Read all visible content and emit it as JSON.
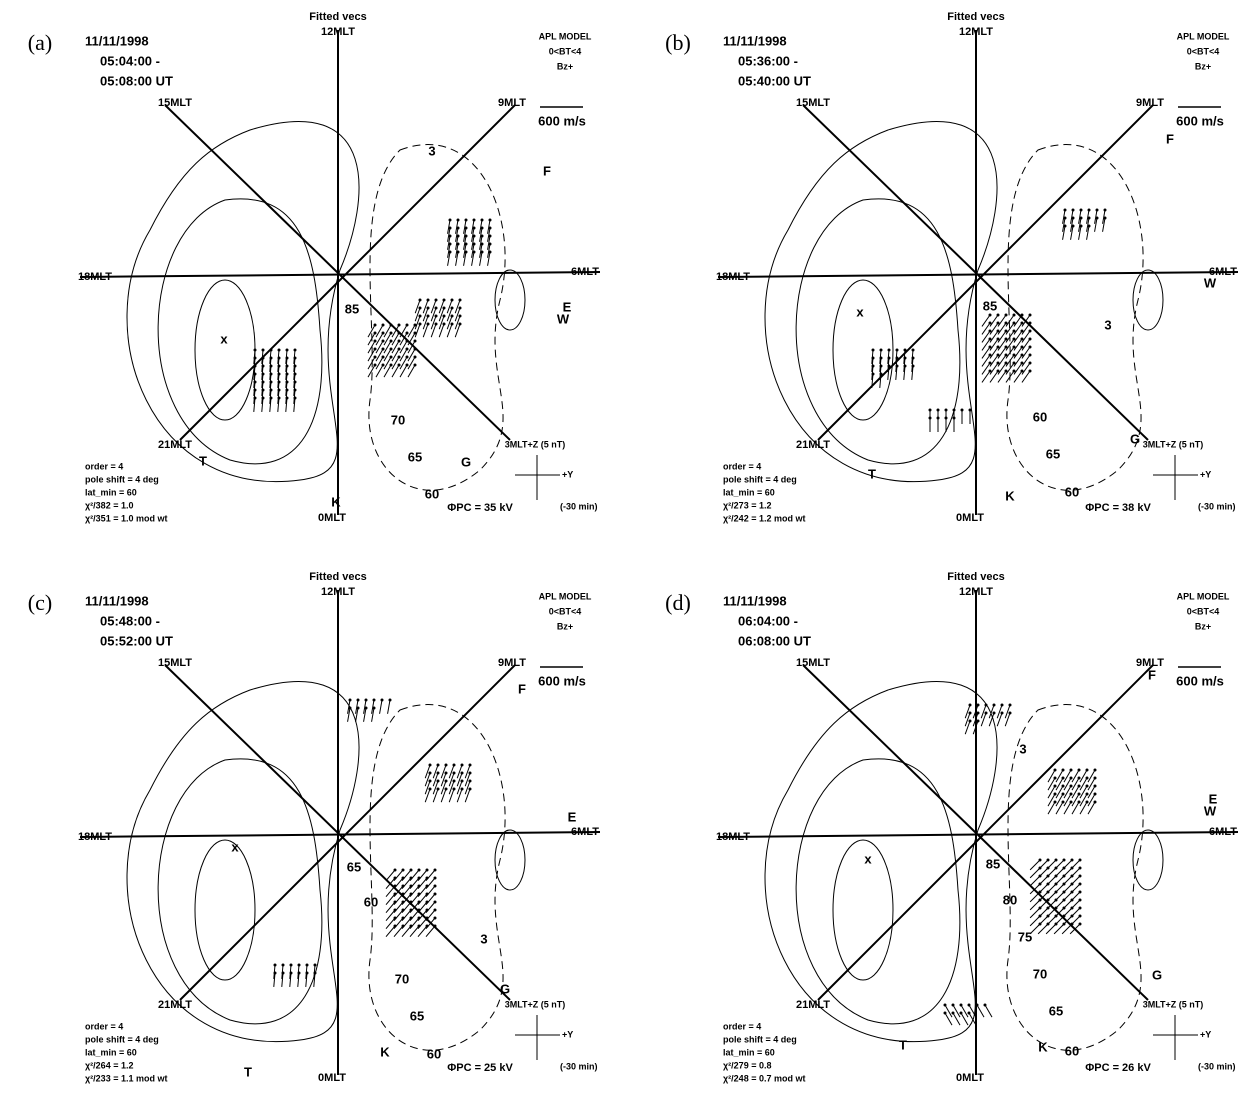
{
  "panels": [
    {
      "label": "(a)",
      "date": "11/11/1998",
      "time_start": "05:04:00 -",
      "time_end": "05:08:00 UT",
      "title": "Fitted vecs",
      "model": [
        "APL MODEL",
        "0<BT<4",
        "Bz+"
      ],
      "scale": "600 m/s",
      "mlt": [
        "12MLT",
        "15MLT",
        "9MLT",
        "18MLT",
        "6MLT",
        "21MLT",
        "3MLT+Z  (5 nT)",
        "0MLT"
      ],
      "imf": [
        "+Y",
        "(-30 min)"
      ],
      "params": [
        "order = 4",
        "pole shift = 4 deg",
        "lat_min = 60",
        "χ²/382 = 1.0",
        "χ²/351 = 1.0   mod wt"
      ],
      "potential": "ΦPC = 35 kV",
      "annotations": [
        "F",
        "E",
        "W",
        "T",
        "G",
        "K",
        "85",
        "70",
        "65",
        "60",
        "3",
        "x"
      ]
    },
    {
      "label": "(b)",
      "date": "11/11/1998",
      "time_start": "05:36:00 -",
      "time_end": "05:40:00 UT",
      "title": "Fitted vecs",
      "model": [
        "APL MODEL",
        "0<BT<4",
        "Bz+"
      ],
      "scale": "600 m/s",
      "mlt": [
        "12MLT",
        "15MLT",
        "9MLT",
        "18MLT",
        "6MLT",
        "21MLT",
        "3MLT+Z  (5 nT)",
        "0MLT"
      ],
      "imf": [
        "+Y",
        "(-30 min)"
      ],
      "params": [
        "order = 4",
        "pole shift = 4 deg",
        "lat_min = 60",
        "χ²/273 = 1.2",
        "χ²/242 = 1.2   mod wt"
      ],
      "potential": "ΦPC = 38 kV",
      "annotations": [
        "F",
        "W",
        "T",
        "G",
        "K",
        "85",
        "60",
        "65",
        "60",
        "3",
        "x"
      ]
    },
    {
      "label": "(c)",
      "date": "11/11/1998",
      "time_start": "05:48:00 -",
      "time_end": "05:52:00 UT",
      "title": "Fitted vecs",
      "model": [
        "APL MODEL",
        "0<BT<4",
        "Bz+"
      ],
      "scale": "600 m/s",
      "mlt": [
        "12MLT",
        "15MLT",
        "9MLT",
        "18MLT",
        "6MLT",
        "21MLT",
        "3MLT+Z  (5 nT)",
        "0MLT"
      ],
      "imf": [
        "+Y",
        "(-30 min)"
      ],
      "params": [
        "order = 4",
        "pole shift = 4 deg",
        "lat_min = 60",
        "χ²/264 = 1.2",
        "χ²/233 = 1.1   mod wt"
      ],
      "potential": "ΦPC = 25 kV",
      "annotations": [
        "F",
        "E",
        "T",
        "G",
        "K",
        "65",
        "60",
        "70",
        "65",
        "60",
        "3",
        "x"
      ]
    },
    {
      "label": "(d)",
      "date": "11/11/1998",
      "time_start": "06:04:00 -",
      "time_end": "06:08:00 UT",
      "title": "Fitted vecs",
      "model": [
        "APL MODEL",
        "0<BT<4",
        "Bz+"
      ],
      "scale": "600 m/s",
      "mlt": [
        "12MLT",
        "15MLT",
        "9MLT",
        "18MLT",
        "6MLT",
        "21MLT",
        "3MLT+Z  (5 nT)",
        "0MLT"
      ],
      "imf": [
        "+Y",
        "(-30 min)"
      ],
      "params": [
        "order = 4",
        "pole shift = 4 deg",
        "lat_min = 60",
        "χ²/279 = 0.8",
        "χ²/248 = 0.7   mod wt"
      ],
      "potential": "ΦPC = 26 kV",
      "annotations": [
        "F",
        "E",
        "W",
        "T",
        "G",
        "K",
        "85",
        "80",
        "75",
        "70",
        "65",
        "60",
        "3",
        "x"
      ]
    }
  ]
}
